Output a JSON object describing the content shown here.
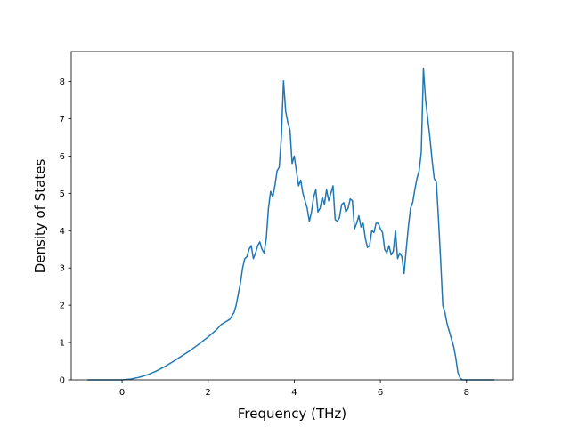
{
  "chart_data": {
    "type": "line",
    "title": "",
    "xlabel": "Frequency (THz)",
    "ylabel": "Density of States",
    "xlim": [
      -1.18,
      9.08
    ],
    "ylim": [
      0,
      8.8
    ],
    "xticks": [
      0,
      2,
      4,
      6,
      8
    ],
    "yticks": [
      0,
      1,
      2,
      3,
      4,
      5,
      6,
      7,
      8
    ],
    "grid": false,
    "legend": "none",
    "series": [
      {
        "color": "#1f77b4",
        "x": [
          -0.8,
          -0.4,
          0.0,
          0.2,
          0.4,
          0.6,
          0.8,
          1.0,
          1.2,
          1.4,
          1.6,
          1.8,
          2.0,
          2.1,
          2.2,
          2.3,
          2.4,
          2.5,
          2.6,
          2.65,
          2.7,
          2.75,
          2.8,
          2.85,
          2.9,
          2.95,
          3.0,
          3.05,
          3.1,
          3.15,
          3.2,
          3.25,
          3.3,
          3.35,
          3.4,
          3.45,
          3.5,
          3.55,
          3.6,
          3.65,
          3.7,
          3.75,
          3.8,
          3.85,
          3.9,
          3.95,
          4.0,
          4.05,
          4.1,
          4.15,
          4.2,
          4.25,
          4.3,
          4.35,
          4.4,
          4.45,
          4.5,
          4.55,
          4.6,
          4.65,
          4.7,
          4.75,
          4.8,
          4.85,
          4.9,
          4.95,
          5.0,
          5.05,
          5.1,
          5.15,
          5.2,
          5.25,
          5.3,
          5.35,
          5.4,
          5.45,
          5.5,
          5.55,
          5.6,
          5.65,
          5.7,
          5.75,
          5.8,
          5.85,
          5.9,
          5.95,
          6.0,
          6.05,
          6.1,
          6.15,
          6.2,
          6.25,
          6.3,
          6.35,
          6.4,
          6.45,
          6.5,
          6.55,
          6.6,
          6.65,
          6.7,
          6.75,
          6.8,
          6.85,
          6.9,
          6.95,
          7.0,
          7.05,
          7.1,
          7.15,
          7.2,
          7.25,
          7.3,
          7.35,
          7.4,
          7.45,
          7.5,
          7.55,
          7.6,
          7.65,
          7.7,
          7.75,
          7.8,
          7.85,
          7.9,
          8.0,
          8.2,
          8.4,
          8.65
        ],
        "y": [
          0.0,
          0.0,
          0.0,
          0.02,
          0.07,
          0.14,
          0.24,
          0.36,
          0.5,
          0.65,
          0.8,
          0.97,
          1.15,
          1.25,
          1.35,
          1.48,
          1.55,
          1.62,
          1.8,
          2.0,
          2.3,
          2.6,
          3.0,
          3.25,
          3.3,
          3.5,
          3.6,
          3.25,
          3.4,
          3.6,
          3.7,
          3.5,
          3.4,
          3.8,
          4.6,
          5.05,
          4.9,
          5.2,
          5.6,
          5.7,
          6.5,
          8.02,
          7.2,
          6.9,
          6.7,
          5.8,
          6.0,
          5.6,
          5.2,
          5.35,
          5.0,
          4.8,
          4.6,
          4.25,
          4.5,
          4.9,
          5.1,
          4.5,
          4.6,
          4.9,
          4.7,
          5.1,
          4.8,
          5.0,
          5.2,
          4.3,
          4.25,
          4.35,
          4.7,
          4.75,
          4.5,
          4.6,
          4.85,
          4.8,
          4.05,
          4.2,
          4.4,
          4.1,
          4.2,
          3.8,
          3.55,
          3.6,
          4.0,
          3.95,
          4.2,
          4.2,
          4.05,
          3.95,
          3.5,
          3.4,
          3.6,
          3.35,
          3.45,
          4.0,
          3.25,
          3.4,
          3.3,
          2.85,
          3.5,
          4.1,
          4.6,
          4.75,
          5.1,
          5.4,
          5.6,
          6.1,
          8.35,
          7.5,
          7.0,
          6.5,
          5.9,
          5.4,
          5.3,
          4.3,
          3.2,
          2.0,
          1.8,
          1.5,
          1.3,
          1.1,
          0.9,
          0.6,
          0.2,
          0.05,
          0.0,
          0.0,
          0.0,
          0.0,
          0.0
        ]
      }
    ]
  }
}
